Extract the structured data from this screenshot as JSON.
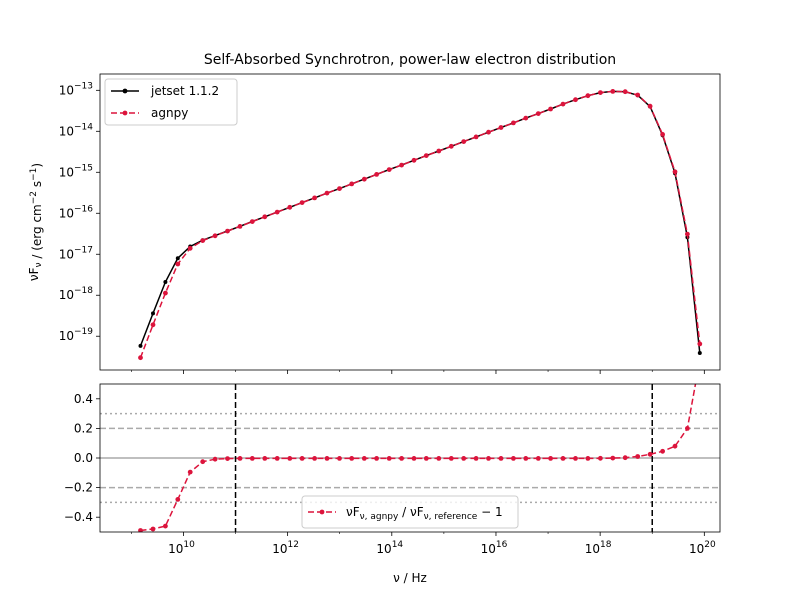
{
  "chart_data": [
    {
      "type": "line",
      "title": "Self-Absorbed Synchrotron, power-law electron distribution",
      "ylabel": "νF_ν / (erg cm^−2 s^−1)",
      "xscale": "log",
      "yscale": "log",
      "xlim": [
        250000000.0,
        2e+20
      ],
      "ylim": [
        1.5e-20,
        2.5e-13
      ],
      "legend_position": "upper-left",
      "xticks": [
        {
          "value": 10000000000.0,
          "label": "10",
          "exp": "10"
        },
        {
          "value": 1000000000000.0,
          "label": "10",
          "exp": "12"
        },
        {
          "value": 100000000000000.0,
          "label": "10",
          "exp": "14"
        },
        {
          "value": 1e+16,
          "label": "10",
          "exp": "16"
        },
        {
          "value": 1e+18,
          "label": "10",
          "exp": "18"
        },
        {
          "value": 1e+20,
          "label": "10",
          "exp": "20"
        }
      ],
      "yticks": [
        {
          "value": 1e-19,
          "label": "10",
          "exp": "−19"
        },
        {
          "value": 1e-18,
          "label": "10",
          "exp": "−18"
        },
        {
          "value": 1e-17,
          "label": "10",
          "exp": "−17"
        },
        {
          "value": 1e-16,
          "label": "10",
          "exp": "−16"
        },
        {
          "value": 1e-15,
          "label": "10",
          "exp": "−15"
        },
        {
          "value": 1e-14,
          "label": "10",
          "exp": "−14"
        },
        {
          "value": 1e-13,
          "label": "10",
          "exp": "−13"
        }
      ],
      "x": [
        1500000000.0,
        2600000000.0,
        4500000000.0,
        7800000000.0,
        13500000000.0,
        23400000000.0,
        40600000000.0,
        70000000000.0,
        122000000000.0,
        210000000000.0,
        365000000000.0,
        630000000000.0,
        1100000000000.0,
        1900000000000.0,
        3300000000000.0,
        5700000000000.0,
        9900000000000.0,
        17000000000000.0,
        29700000000000.0,
        51000000000000.0,
        89000000000000.0,
        154000000000000.0,
        267000000000000.0,
        460000000000000.0,
        800000000000000.0,
        1390000000000000.0,
        2400000000000000.0,
        4160000000000000.0,
        7200000000000000.0,
        1.25e+16,
        2.16e+16,
        3.74e+16,
        6.5e+16,
        1.12e+17,
        1.94e+17,
        3.37e+17,
        5.83e+17,
        1.01e+18,
        1.75e+18,
        3.03e+18,
        5.25e+18,
        9.1e+18,
        1.58e+19,
        2.73e+19,
        4.73e+19,
        8.2e+19
      ],
      "series": [
        {
          "name": "jetset 1.1.2",
          "color": "#000000",
          "linestyle": "solid",
          "values": [
            5.8e-20,
            3.6e-19,
            2.1e-18,
            8e-18,
            1.55e-17,
            2.2e-17,
            2.85e-17,
            3.7e-17,
            4.8e-17,
            6.3e-17,
            8.2e-17,
            1.07e-16,
            1.4e-16,
            1.82e-16,
            2.37e-16,
            3.1e-16,
            4e-16,
            5.2e-16,
            6.8e-16,
            8.9e-16,
            1.16e-15,
            1.5e-15,
            1.96e-15,
            2.55e-15,
            3.3e-15,
            4.3e-15,
            5.6e-15,
            7.3e-15,
            9.5e-15,
            1.24e-14,
            1.6e-14,
            2.1e-14,
            2.7e-14,
            3.5e-14,
            4.6e-14,
            5.9e-14,
            7.4e-14,
            8.8e-14,
            9.4e-14,
            9.2e-14,
            7.6e-14,
            4e-14,
            8e-15,
            9.5e-16,
            2.6e-17,
            3.9e-20
          ]
        },
        {
          "name": "agnpy",
          "color": "#dc143c",
          "linestyle": "dashed",
          "values": [
            3e-20,
            1.9e-19,
            1.13e-18,
            5.8e-18,
            1.4e-17,
            2.15e-17,
            2.82e-17,
            3.68e-17,
            4.78e-17,
            6.28e-17,
            8.18e-17,
            1.068e-16,
            1.398e-16,
            1.818e-16,
            2.368e-16,
            3.098e-16,
            3.998e-16,
            5.198e-16,
            6.798e-16,
            8.898e-16,
            1.16e-15,
            1.5e-15,
            1.96e-15,
            2.55e-15,
            3.3e-15,
            4.3e-15,
            5.6e-15,
            7.3e-15,
            9.5e-15,
            1.24e-14,
            1.6e-14,
            2.1e-14,
            2.7e-14,
            3.5e-14,
            4.6e-14,
            5.9e-14,
            7.4e-14,
            8.8e-14,
            9.4e-14,
            9.25e-14,
            7.7e-14,
            4.1e-14,
            8.4e-15,
            1.03e-15,
            3.1e-17,
            6.5e-20
          ]
        }
      ]
    },
    {
      "type": "line",
      "xlabel": "ν / Hz",
      "xscale": "log",
      "xlim": [
        250000000.0,
        2e+20
      ],
      "ylim": [
        -0.5,
        0.5
      ],
      "legend_position": "lower-center",
      "yticks": [
        {
          "value": -0.4,
          "label": "−0.4"
        },
        {
          "value": -0.2,
          "label": "−0.2"
        },
        {
          "value": 0.0,
          "label": "0.0"
        },
        {
          "value": 0.2,
          "label": "0.2"
        },
        {
          "value": 0.4,
          "label": "0.4"
        }
      ],
      "hlines": [
        {
          "y": 0.0,
          "color": "#aaaaaa",
          "style": "solid"
        },
        {
          "y": 0.2,
          "color": "#aaaaaa",
          "style": "dashed"
        },
        {
          "y": -0.2,
          "color": "#aaaaaa",
          "style": "dashed"
        },
        {
          "y": 0.3,
          "color": "#aaaaaa",
          "style": "dotted"
        },
        {
          "y": -0.3,
          "color": "#aaaaaa",
          "style": "dotted"
        }
      ],
      "vlines": [
        {
          "x": 100000000000.0,
          "color": "#000000",
          "style": "dashed"
        },
        {
          "x": 1e+19,
          "color": "#000000",
          "style": "dashed"
        }
      ],
      "series": [
        {
          "name": "νF_ν,agnpy / νF_ν,reference − 1",
          "color": "#dc143c",
          "linestyle": "dashed",
          "values": [
            -0.49,
            -0.48,
            -0.46,
            -0.28,
            -0.095,
            -0.025,
            -0.008,
            -0.004,
            -0.003,
            -0.003,
            -0.003,
            -0.003,
            -0.003,
            -0.003,
            -0.003,
            -0.003,
            -0.003,
            -0.003,
            -0.003,
            -0.003,
            -0.003,
            -0.003,
            -0.003,
            -0.003,
            -0.003,
            -0.003,
            -0.003,
            -0.003,
            -0.003,
            -0.003,
            -0.003,
            -0.003,
            -0.003,
            -0.003,
            -0.003,
            -0.003,
            -0.003,
            -0.002,
            -0.001,
            0.002,
            0.01,
            0.025,
            0.045,
            0.08,
            0.2,
            0.66
          ]
        }
      ]
    }
  ]
}
